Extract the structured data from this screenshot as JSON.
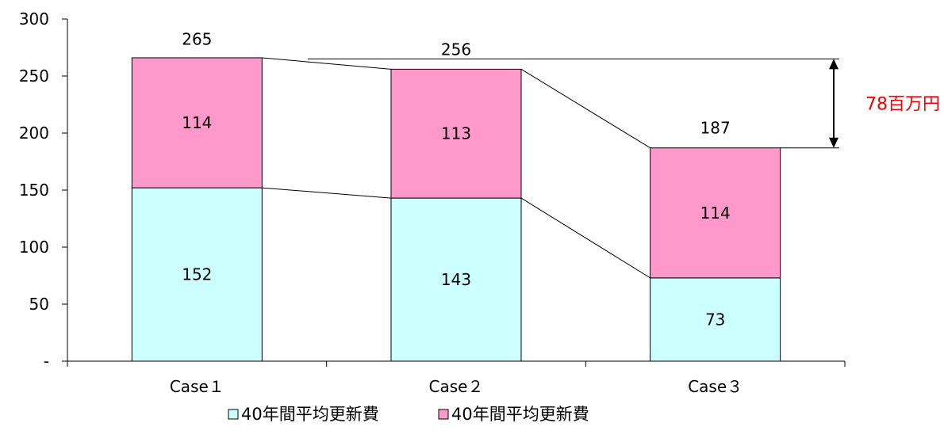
{
  "chart_data": {
    "type": "bar",
    "stacked": true,
    "categories": [
      "Case１",
      "Case２",
      "Case３"
    ],
    "series": [
      {
        "name": "40年間平均更新費",
        "values": [
          152,
          143,
          73
        ],
        "color": "#ccffff"
      },
      {
        "name": "40年間平均更新費",
        "values": [
          114,
          113,
          114
        ],
        "color": "#ff99cc"
      }
    ],
    "totals": [
      265,
      256,
      187
    ],
    "ylim": [
      0,
      300
    ],
    "yticks": [
      "-",
      "50",
      "100",
      "150",
      "200",
      "250",
      "300"
    ],
    "grid": false,
    "legend_position": "bottom",
    "annotation": {
      "text": "78百万円",
      "color": "#ff0000"
    }
  }
}
